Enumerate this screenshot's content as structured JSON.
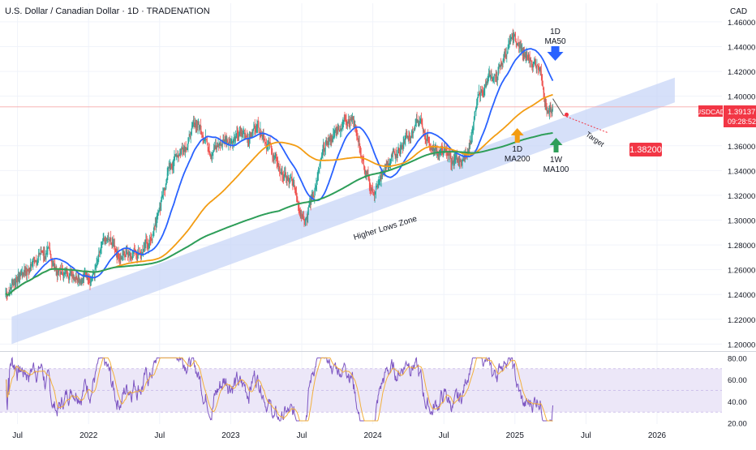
{
  "header": {
    "title": "U.S. Dollar / Canadian Dollar · 1D · TRADENATION"
  },
  "price_axis": {
    "currency": "CAD",
    "ticks": [
      "1.46000",
      "1.44000",
      "1.42000",
      "1.40000",
      "1.36000",
      "1.34000",
      "1.32000",
      "1.30000",
      "1.28000",
      "1.26000",
      "1.24000",
      "1.22000",
      "1.20000"
    ]
  },
  "rsi_axis": {
    "ticks": [
      "80.00",
      "60.00",
      "40.00",
      "20.00"
    ]
  },
  "time_axis": {
    "ticks": [
      "Jul",
      "2022",
      "Jul",
      "2023",
      "Jul",
      "2024",
      "Jul",
      "2025",
      "Jul",
      "2026"
    ]
  },
  "badges": {
    "symbol": "USDCAD",
    "price": "1.39137",
    "countdown": "09:28:52",
    "target": "1.38200"
  },
  "annotations": {
    "ma50": [
      "1D",
      "MA50"
    ],
    "ma200": [
      "1D",
      "MA200"
    ],
    "ma100": [
      "1W",
      "MA100"
    ],
    "target": "Target",
    "zone": "Higher Lows Zone"
  },
  "colors": {
    "bull": "#26a69a",
    "bear": "#ef5350",
    "ma50": "#2962ff",
    "ma200": "#f39c12",
    "ma100w": "#2e9e59",
    "zone": "#c5d3f6",
    "rsi": "#7e57c2",
    "rsi_ma": "#f2b03c",
    "rsi_band": "#ece7f8",
    "target_badge": "#f23645",
    "symbol_badge": "#f23645",
    "arrow_blue": "#2962ff",
    "arrow_orange": "#f39c12",
    "arrow_green": "#2e9e59"
  },
  "chart_data": [
    {
      "type": "candlestick",
      "symbol": "USDCAD",
      "timeframe": "1D",
      "ylim": [
        1.195,
        1.475
      ],
      "x_range": [
        "2021-06",
        "2026-04"
      ],
      "key_prices": [
        {
          "date": "2021-06",
          "close": 1.24
        },
        {
          "date": "2021-09",
          "close": 1.27
        },
        {
          "date": "2022-01",
          "close": 1.26
        },
        {
          "date": "2022-05",
          "close": 1.28
        },
        {
          "date": "2022-10",
          "close": 1.37
        },
        {
          "date": "2023-03",
          "close": 1.37
        },
        {
          "date": "2023-07",
          "close": 1.32
        },
        {
          "date": "2023-11",
          "close": 1.38
        },
        {
          "date": "2024-01",
          "close": 1.33
        },
        {
          "date": "2024-04",
          "close": 1.37
        },
        {
          "date": "2024-08",
          "close": 1.35
        },
        {
          "date": "2024-11",
          "close": 1.41
        },
        {
          "date": "2025-01",
          "close": 1.44
        },
        {
          "date": "2025-03",
          "close": 1.43
        },
        {
          "date": "2025-04",
          "close": 1.39137
        }
      ],
      "moving_averages": [
        {
          "name": "1D MA50",
          "color": "#2962ff"
        },
        {
          "name": "1D MA200",
          "color": "#f39c12"
        },
        {
          "name": "1W MA100",
          "color": "#2e9e59"
        }
      ],
      "target": 1.382,
      "last_price": 1.39137
    },
    {
      "type": "line",
      "name": "RSI",
      "ylim": [
        20,
        80
      ],
      "band": [
        30,
        70
      ]
    }
  ]
}
